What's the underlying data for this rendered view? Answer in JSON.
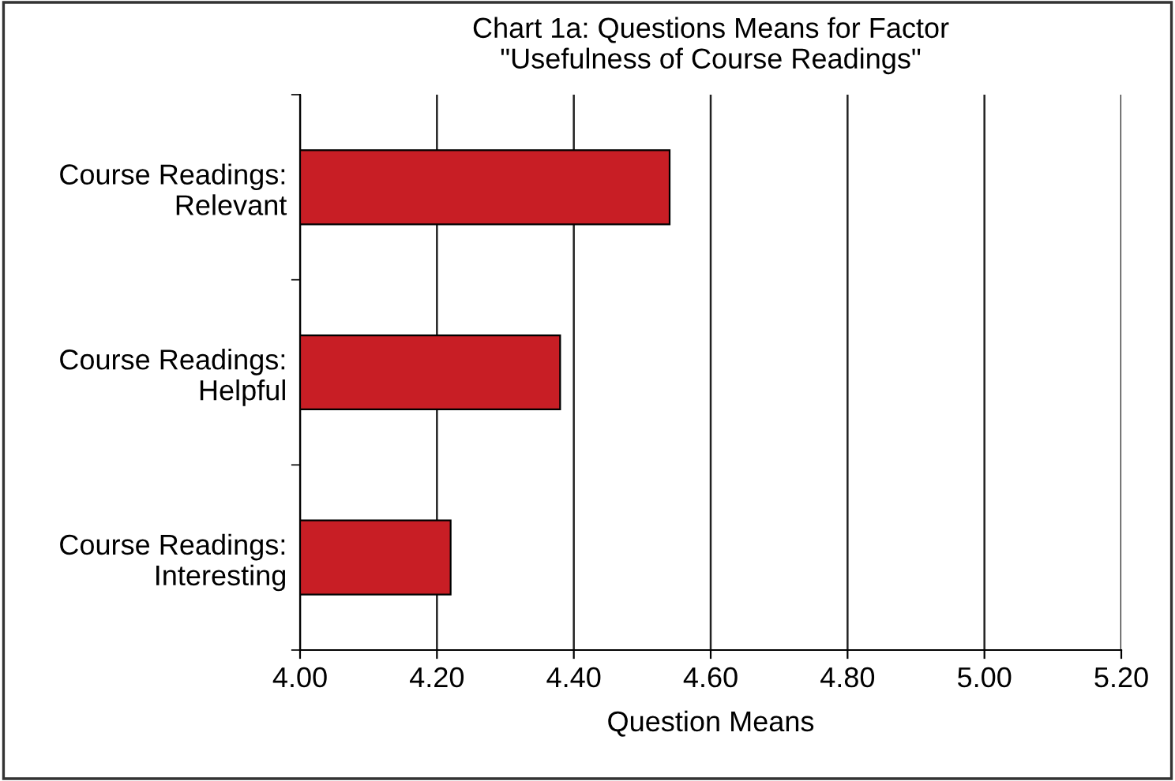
{
  "chart_data": {
    "type": "bar",
    "orientation": "horizontal",
    "title": "Chart 1a: Questions Means for Factor\n\"Usefulness of Course Readings\"",
    "xlabel": "Question Means",
    "categories": [
      "Course Readings:\nRelevant",
      "Course Readings:\nHelpful",
      "Course Readings:\nInteresting"
    ],
    "values": [
      4.54,
      4.38,
      4.22
    ],
    "color": "#c81e25",
    "xlim": [
      4.0,
      5.2
    ],
    "xticks": [
      {
        "value": 4.0,
        "label": "4.00"
      },
      {
        "value": 4.2,
        "label": "4.20"
      },
      {
        "value": 4.4,
        "label": "4.40"
      },
      {
        "value": 4.6,
        "label": "4.60"
      },
      {
        "value": 4.8,
        "label": "4.80"
      },
      {
        "value": 5.0,
        "label": "5.00"
      },
      {
        "value": 5.2,
        "label": "5.20"
      }
    ],
    "grid": "x"
  }
}
